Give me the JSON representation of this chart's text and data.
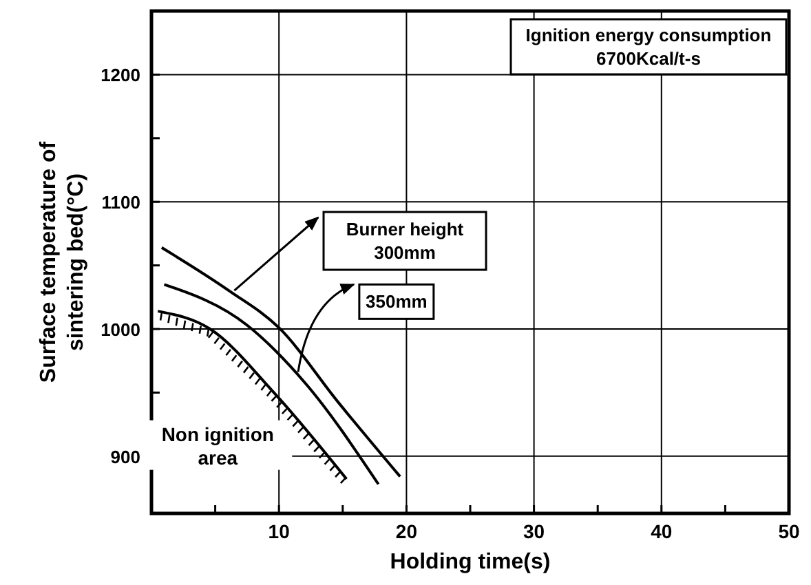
{
  "chart_data": {
    "type": "line",
    "xlabel": "Holding time(s)",
    "ylabel": "Surface temperature of sintering bed(°C)",
    "xlim": [
      0,
      50
    ],
    "ylim": [
      855,
      1250
    ],
    "xticks": [
      {
        "value": 5,
        "label": null
      },
      10,
      {
        "value": 15,
        "label": null
      },
      20,
      {
        "value": 25,
        "label": null
      },
      30,
      {
        "value": 35,
        "label": null
      },
      40,
      {
        "value": 45,
        "label": null
      },
      50
    ],
    "yticks": [
      900,
      {
        "value": 950,
        "label": null
      },
      1000,
      {
        "value": 1050,
        "label": null
      },
      1100,
      {
        "value": 1150,
        "label": null
      },
      1200
    ],
    "grid": true,
    "marker": "none",
    "line_style": "solid",
    "series": [
      {
        "name": "Burner height 300mm",
        "color": "#000000",
        "x": [
          0.8,
          6.1,
          10,
          14.6,
          19.5
        ],
        "values": [
          1064,
          1030,
          1001,
          943,
          884
        ]
      },
      {
        "name": "350mm",
        "color": "#000000",
        "x": [
          1,
          7.5,
          12.1,
          17.8
        ],
        "values": [
          1035,
          1003,
          957,
          878
        ]
      },
      {
        "color": "#000000",
        "x": [
          0.5,
          4.6,
          9.6,
          15.3
        ],
        "values": [
          1014,
          1000,
          950,
          882
        ]
      }
    ],
    "annotations": [
      "Ignition energy consumption 6700Kcal/t-s",
      "Non ignition area"
    ]
  }
}
